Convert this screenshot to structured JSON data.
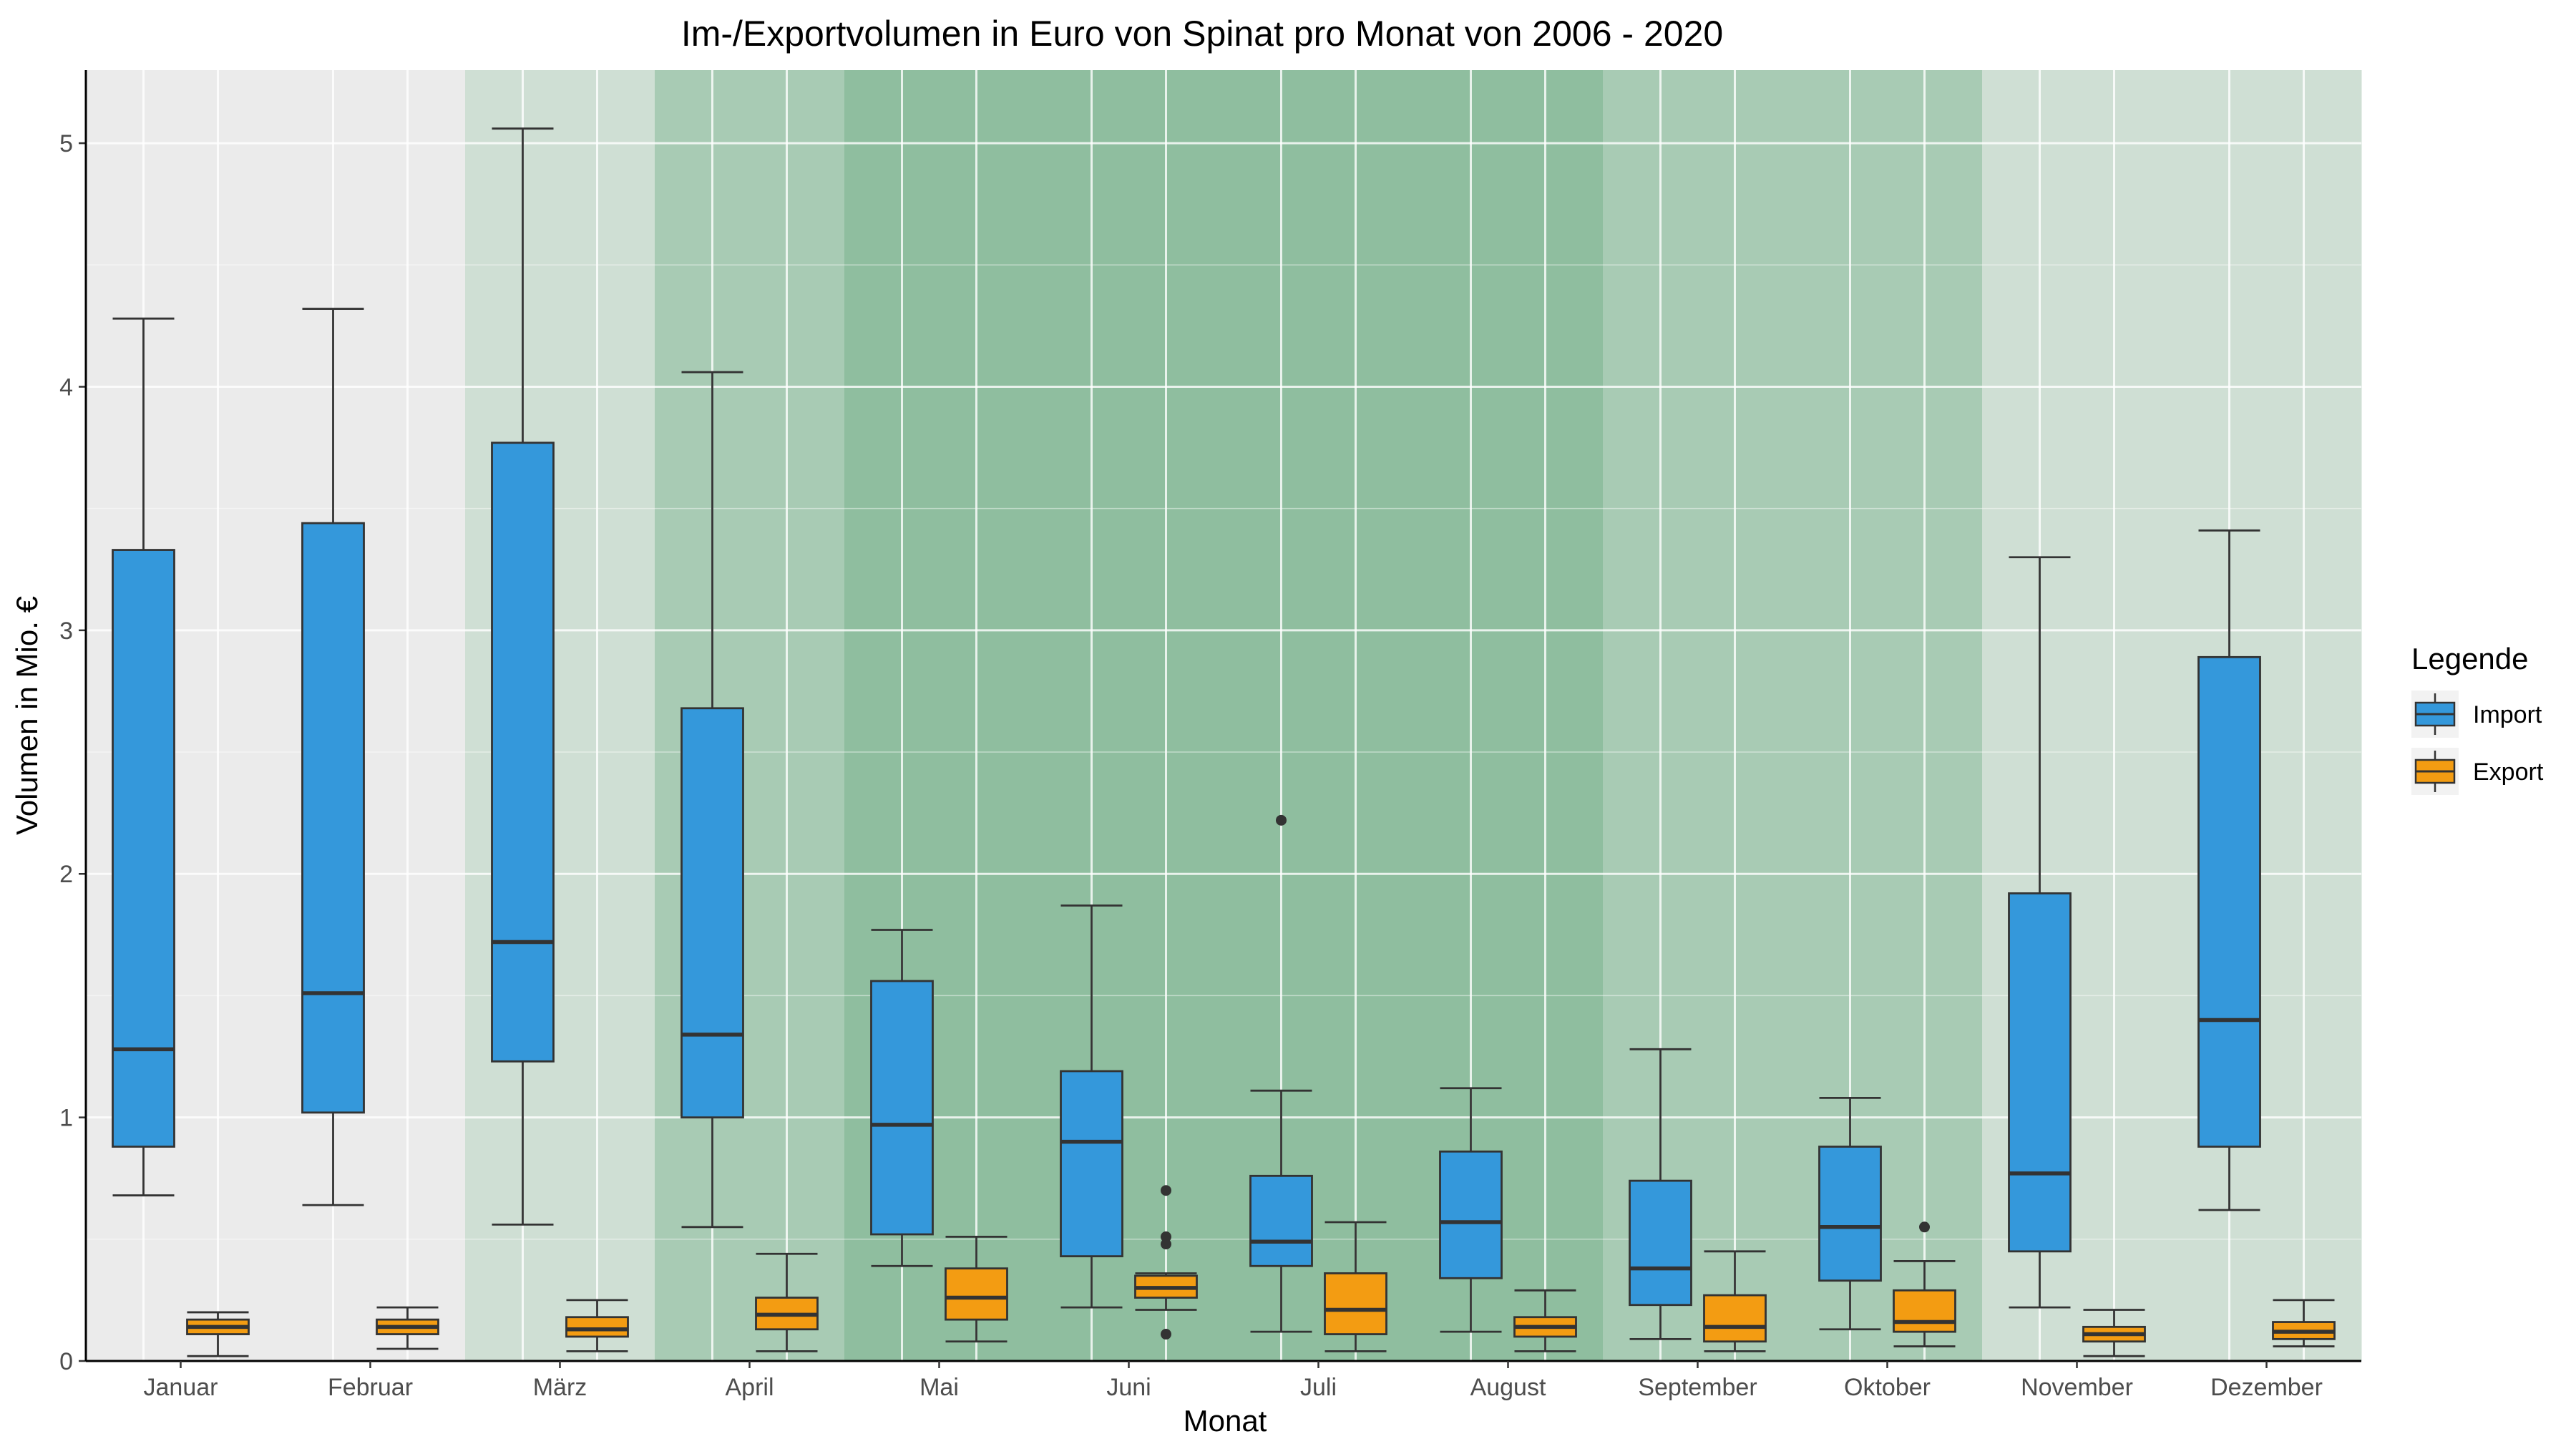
{
  "chart_data": {
    "type": "boxplot",
    "title": "Im-/Exportvolumen in Euro von Spinat pro Monat von 2006 - 2020",
    "xlabel": "Monat",
    "ylabel": "Volumen in Mio. €",
    "ylim": [
      0,
      5.3
    ],
    "yticks": [
      0,
      1,
      2,
      3,
      4,
      5
    ],
    "grid": true,
    "legend": {
      "title": "Legende",
      "position": "right",
      "entries": [
        {
          "name": "Import",
          "color": "#3498db"
        },
        {
          "name": "Export",
          "color": "#f39c12"
        }
      ]
    },
    "categories": [
      "Januar",
      "Februar",
      "März",
      "April",
      "Mai",
      "Juni",
      "Juli",
      "August",
      "September",
      "Oktober",
      "November",
      "Dezember"
    ],
    "season_intensity": [
      0,
      0,
      1,
      2,
      3,
      3,
      3,
      3,
      2,
      2,
      1,
      1
    ],
    "season_colors": [
      "#ebebeb",
      "#cfdfd4",
      "#a8cbb4",
      "#8fbe9f"
    ],
    "series": [
      {
        "name": "Import",
        "color": "#3498db",
        "boxes": [
          {
            "whisker_low": 0.68,
            "q1": 0.88,
            "median": 1.28,
            "q3": 3.33,
            "whisker_high": 4.28,
            "outliers": []
          },
          {
            "whisker_low": 0.64,
            "q1": 1.02,
            "median": 1.51,
            "q3": 3.44,
            "whisker_high": 4.32,
            "outliers": []
          },
          {
            "whisker_low": 0.56,
            "q1": 1.23,
            "median": 1.72,
            "q3": 3.77,
            "whisker_high": 5.06,
            "outliers": []
          },
          {
            "whisker_low": 0.55,
            "q1": 1.0,
            "median": 1.34,
            "q3": 2.68,
            "whisker_high": 4.06,
            "outliers": []
          },
          {
            "whisker_low": 0.39,
            "q1": 0.52,
            "median": 0.97,
            "q3": 1.56,
            "whisker_high": 1.77,
            "outliers": []
          },
          {
            "whisker_low": 0.22,
            "q1": 0.43,
            "median": 0.9,
            "q3": 1.19,
            "whisker_high": 1.87,
            "outliers": []
          },
          {
            "whisker_low": 0.12,
            "q1": 0.39,
            "median": 0.49,
            "q3": 0.76,
            "whisker_high": 1.11,
            "outliers": [
              2.22
            ]
          },
          {
            "whisker_low": 0.12,
            "q1": 0.34,
            "median": 0.57,
            "q3": 0.86,
            "whisker_high": 1.12,
            "outliers": []
          },
          {
            "whisker_low": 0.09,
            "q1": 0.23,
            "median": 0.38,
            "q3": 0.74,
            "whisker_high": 1.28,
            "outliers": []
          },
          {
            "whisker_low": 0.13,
            "q1": 0.33,
            "median": 0.55,
            "q3": 0.88,
            "whisker_high": 1.08,
            "outliers": []
          },
          {
            "whisker_low": 0.22,
            "q1": 0.45,
            "median": 0.77,
            "q3": 1.92,
            "whisker_high": 3.3,
            "outliers": []
          },
          {
            "whisker_low": 0.62,
            "q1": 0.88,
            "median": 1.4,
            "q3": 2.89,
            "whisker_high": 3.41,
            "outliers": []
          }
        ]
      },
      {
        "name": "Export",
        "color": "#f39c12",
        "boxes": [
          {
            "whisker_low": 0.02,
            "q1": 0.11,
            "median": 0.14,
            "q3": 0.17,
            "whisker_high": 0.2,
            "outliers": []
          },
          {
            "whisker_low": 0.05,
            "q1": 0.11,
            "median": 0.14,
            "q3": 0.17,
            "whisker_high": 0.22,
            "outliers": []
          },
          {
            "whisker_low": 0.04,
            "q1": 0.1,
            "median": 0.13,
            "q3": 0.18,
            "whisker_high": 0.25,
            "outliers": []
          },
          {
            "whisker_low": 0.04,
            "q1": 0.13,
            "median": 0.19,
            "q3": 0.26,
            "whisker_high": 0.44,
            "outliers": []
          },
          {
            "whisker_low": 0.08,
            "q1": 0.17,
            "median": 0.26,
            "q3": 0.38,
            "whisker_high": 0.51,
            "outliers": []
          },
          {
            "whisker_low": 0.21,
            "q1": 0.26,
            "median": 0.3,
            "q3": 0.35,
            "whisker_high": 0.36,
            "outliers": [
              0.7,
              0.51,
              0.48,
              0.11
            ]
          },
          {
            "whisker_low": 0.04,
            "q1": 0.11,
            "median": 0.21,
            "q3": 0.36,
            "whisker_high": 0.57,
            "outliers": []
          },
          {
            "whisker_low": 0.04,
            "q1": 0.1,
            "median": 0.14,
            "q3": 0.18,
            "whisker_high": 0.29,
            "outliers": []
          },
          {
            "whisker_low": 0.04,
            "q1": 0.08,
            "median": 0.14,
            "q3": 0.27,
            "whisker_high": 0.45,
            "outliers": []
          },
          {
            "whisker_low": 0.06,
            "q1": 0.12,
            "median": 0.16,
            "q3": 0.29,
            "whisker_high": 0.41,
            "outliers": [
              0.55
            ]
          },
          {
            "whisker_low": 0.02,
            "q1": 0.08,
            "median": 0.11,
            "q3": 0.14,
            "whisker_high": 0.21,
            "outliers": []
          },
          {
            "whisker_low": 0.06,
            "q1": 0.09,
            "median": 0.12,
            "q3": 0.16,
            "whisker_high": 0.25,
            "outliers": []
          }
        ]
      }
    ]
  }
}
